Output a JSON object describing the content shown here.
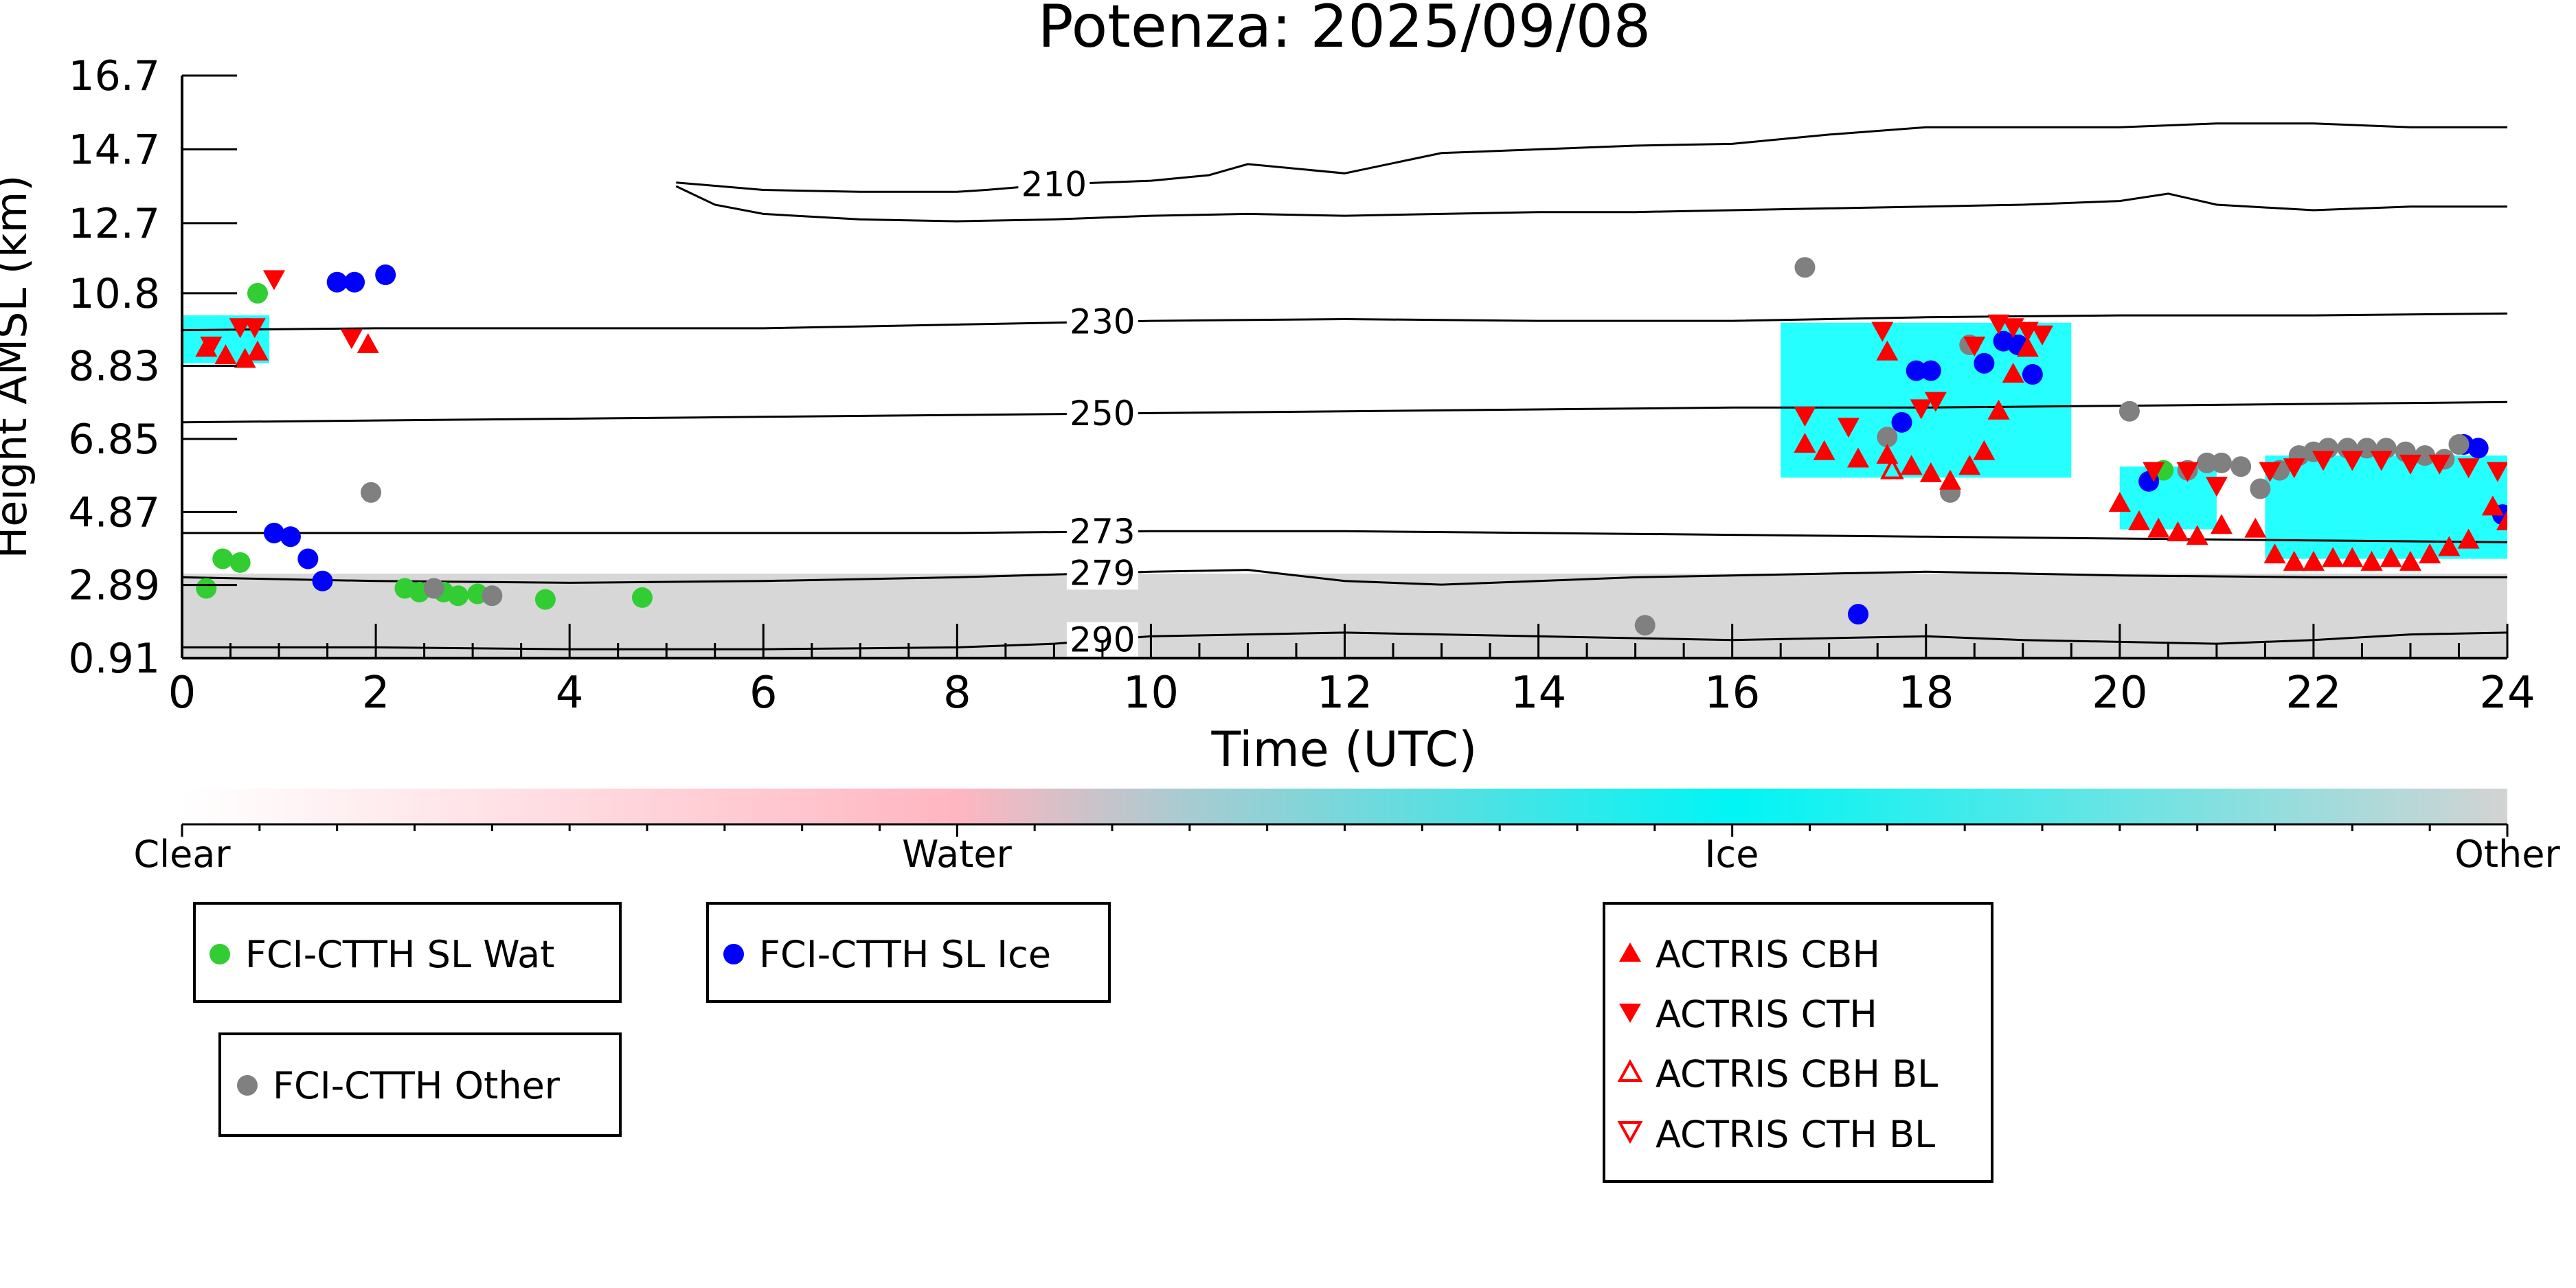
{
  "chart_data": {
    "type": "scatter",
    "title": "Potenza: 2025/09/08",
    "xlabel": "Time (UTC)",
    "ylabel": "Height AMSL (km)",
    "xlim": [
      0,
      24
    ],
    "ylim": [
      0.91,
      16.7
    ],
    "x_ticks": [
      "0",
      "2",
      "4",
      "6",
      "8",
      "10",
      "12",
      "14",
      "16",
      "18",
      "20",
      "22",
      "24"
    ],
    "y_ticks": [
      "0.91",
      "2.89",
      "4.87",
      "6.85",
      "8.83",
      "10.8",
      "12.7",
      "14.7",
      "16.7"
    ],
    "colorbar": {
      "labels": [
        "Clear",
        "Water",
        "Ice",
        "Other"
      ],
      "colors": [
        "#ffffff",
        "#ffb6c1",
        "#00ffff",
        "#d3d3d3"
      ]
    },
    "isotherms": [
      {
        "label": "210",
        "points": [
          [
            5.1,
            13.8
          ],
          [
            6,
            13.6
          ],
          [
            7,
            13.55
          ],
          [
            8,
            13.55
          ],
          [
            8.3,
            13.6
          ],
          [
            9,
            13.75
          ],
          [
            10,
            13.85
          ],
          [
            10.6,
            14.0
          ],
          [
            11,
            14.3
          ],
          [
            12,
            14.05
          ],
          [
            13,
            14.6
          ],
          [
            14,
            14.7
          ],
          [
            15,
            14.8
          ],
          [
            16,
            14.85
          ],
          [
            17,
            15.1
          ],
          [
            18,
            15.3
          ],
          [
            19,
            15.3
          ],
          [
            20,
            15.3
          ],
          [
            21,
            15.4
          ],
          [
            22,
            15.4
          ],
          [
            23,
            15.3
          ],
          [
            24,
            15.3
          ]
        ]
      },
      {
        "label": "",
        "points": [
          [
            5.1,
            13.7
          ],
          [
            5.5,
            13.2
          ],
          [
            6,
            12.95
          ],
          [
            7,
            12.8
          ],
          [
            8,
            12.75
          ],
          [
            9,
            12.8
          ],
          [
            10,
            12.9
          ],
          [
            11,
            12.95
          ],
          [
            12,
            12.9
          ],
          [
            13,
            12.95
          ],
          [
            14,
            13.0
          ],
          [
            15,
            13.0
          ],
          [
            16,
            13.05
          ],
          [
            17,
            13.1
          ],
          [
            18,
            13.15
          ],
          [
            19,
            13.2
          ],
          [
            20,
            13.3
          ],
          [
            20.5,
            13.5
          ],
          [
            21,
            13.2
          ],
          [
            22,
            13.05
          ],
          [
            23,
            13.15
          ],
          [
            24,
            13.15
          ]
        ]
      },
      {
        "label": "230",
        "points": [
          [
            0,
            9.8
          ],
          [
            2,
            9.85
          ],
          [
            4,
            9.85
          ],
          [
            6,
            9.85
          ],
          [
            8,
            9.95
          ],
          [
            10,
            10.05
          ],
          [
            12,
            10.1
          ],
          [
            14,
            10.05
          ],
          [
            16,
            10.05
          ],
          [
            18,
            10.15
          ],
          [
            20,
            10.2
          ],
          [
            22,
            10.2
          ],
          [
            24,
            10.25
          ]
        ]
      },
      {
        "label": "250",
        "points": [
          [
            0,
            7.3
          ],
          [
            2,
            7.35
          ],
          [
            4,
            7.4
          ],
          [
            6,
            7.45
          ],
          [
            8,
            7.5
          ],
          [
            10,
            7.55
          ],
          [
            12,
            7.6
          ],
          [
            14,
            7.65
          ],
          [
            16,
            7.7
          ],
          [
            18,
            7.7
          ],
          [
            20,
            7.75
          ],
          [
            22,
            7.8
          ],
          [
            24,
            7.85
          ]
        ]
      },
      {
        "label": "273",
        "points": [
          [
            0,
            4.3
          ],
          [
            2,
            4.3
          ],
          [
            4,
            4.3
          ],
          [
            6,
            4.3
          ],
          [
            8,
            4.3
          ],
          [
            10,
            4.35
          ],
          [
            12,
            4.35
          ],
          [
            14,
            4.3
          ],
          [
            16,
            4.25
          ],
          [
            18,
            4.2
          ],
          [
            20,
            4.15
          ],
          [
            22,
            4.1
          ],
          [
            24,
            4.05
          ]
        ]
      },
      {
        "label": "279",
        "points": [
          [
            0,
            3.1
          ],
          [
            2,
            3.0
          ],
          [
            4,
            2.95
          ],
          [
            6,
            3.0
          ],
          [
            8,
            3.1
          ],
          [
            10,
            3.25
          ],
          [
            11,
            3.3
          ],
          [
            12,
            3.0
          ],
          [
            13,
            2.9
          ],
          [
            14,
            3.0
          ],
          [
            15,
            3.1
          ],
          [
            16,
            3.15
          ],
          [
            17,
            3.2
          ],
          [
            18,
            3.25
          ],
          [
            19,
            3.2
          ],
          [
            20,
            3.15
          ],
          [
            22,
            3.1
          ],
          [
            24,
            3.1
          ]
        ]
      },
      {
        "label": "290",
        "points": [
          [
            0,
            1.2
          ],
          [
            2,
            1.2
          ],
          [
            4,
            1.15
          ],
          [
            6,
            1.15
          ],
          [
            8,
            1.2
          ],
          [
            9,
            1.3
          ],
          [
            10,
            1.5
          ],
          [
            11,
            1.55
          ],
          [
            12,
            1.6
          ],
          [
            13,
            1.55
          ],
          [
            14,
            1.5
          ],
          [
            15,
            1.45
          ],
          [
            16,
            1.4
          ],
          [
            17,
            1.45
          ],
          [
            18,
            1.5
          ],
          [
            19,
            1.4
          ],
          [
            20,
            1.35
          ],
          [
            21,
            1.3
          ],
          [
            22,
            1.4
          ],
          [
            23,
            1.55
          ],
          [
            24,
            1.6
          ]
        ]
      }
    ],
    "series": [
      {
        "name": "FCI-CTTH SL Wat",
        "color": "#32cd32",
        "marker": "circle",
        "points": [
          [
            0.25,
            2.8
          ],
          [
            0.42,
            3.6
          ],
          [
            0.6,
            3.5
          ],
          [
            0.78,
            10.8
          ],
          [
            2.3,
            2.8
          ],
          [
            2.45,
            2.7
          ],
          [
            2.7,
            2.7
          ],
          [
            2.85,
            2.6
          ],
          [
            3.05,
            2.65
          ],
          [
            3.75,
            2.5
          ],
          [
            4.75,
            2.55
          ],
          [
            20.45,
            6.0
          ]
        ]
      },
      {
        "name": "FCI-CTTH SL Ice",
        "color": "#0000ff",
        "marker": "circle",
        "points": [
          [
            0.95,
            4.3
          ],
          [
            1.12,
            4.2
          ],
          [
            1.3,
            3.6
          ],
          [
            1.45,
            3.0
          ],
          [
            1.6,
            11.1
          ],
          [
            1.78,
            11.1
          ],
          [
            2.1,
            11.3
          ],
          [
            17.3,
            2.1
          ],
          [
            17.75,
            7.3
          ],
          [
            17.9,
            8.7
          ],
          [
            18.05,
            8.7
          ],
          [
            18.6,
            8.9
          ],
          [
            18.8,
            9.5
          ],
          [
            18.95,
            9.4
          ],
          [
            19.1,
            8.6
          ],
          [
            20.3,
            5.7
          ],
          [
            23.55,
            6.7
          ],
          [
            23.7,
            6.6
          ],
          [
            23.95,
            4.8
          ]
        ]
      },
      {
        "name": "FCI-CTTH Other",
        "color": "#808080",
        "marker": "circle",
        "points": [
          [
            1.95,
            5.4
          ],
          [
            2.6,
            2.8
          ],
          [
            3.2,
            2.6
          ],
          [
            15.1,
            1.8
          ],
          [
            16.75,
            11.5
          ],
          [
            17.6,
            6.9
          ],
          [
            18.25,
            5.4
          ],
          [
            18.45,
            9.4
          ],
          [
            20.1,
            7.6
          ],
          [
            20.7,
            6.0
          ],
          [
            20.9,
            6.2
          ],
          [
            21.05,
            6.2
          ],
          [
            21.25,
            6.1
          ],
          [
            21.45,
            5.5
          ],
          [
            21.65,
            6.0
          ],
          [
            21.85,
            6.4
          ],
          [
            22.0,
            6.5
          ],
          [
            22.15,
            6.6
          ],
          [
            22.35,
            6.6
          ],
          [
            22.55,
            6.6
          ],
          [
            22.75,
            6.6
          ],
          [
            22.95,
            6.5
          ],
          [
            23.15,
            6.4
          ],
          [
            23.35,
            6.3
          ],
          [
            23.5,
            6.7
          ]
        ]
      },
      {
        "name": "ACTRIS CBH",
        "color": "#ff0000",
        "marker": "triangle-up",
        "points": [
          [
            0.25,
            9.3
          ],
          [
            0.45,
            9.1
          ],
          [
            0.65,
            9.0
          ],
          [
            0.78,
            9.2
          ],
          [
            1.92,
            9.4
          ],
          [
            16.75,
            6.7
          ],
          [
            16.95,
            6.5
          ],
          [
            17.3,
            6.3
          ],
          [
            17.6,
            6.4
          ],
          [
            17.85,
            6.1
          ],
          [
            18.05,
            5.9
          ],
          [
            18.25,
            5.7
          ],
          [
            18.45,
            6.1
          ],
          [
            18.6,
            6.5
          ],
          [
            18.75,
            7.6
          ],
          [
            18.9,
            8.6
          ],
          [
            19.05,
            9.3
          ],
          [
            17.6,
            9.2
          ],
          [
            20.0,
            5.1
          ],
          [
            20.2,
            4.6
          ],
          [
            20.4,
            4.4
          ],
          [
            20.6,
            4.3
          ],
          [
            20.8,
            4.2
          ],
          [
            21.05,
            4.5
          ],
          [
            21.4,
            4.4
          ],
          [
            21.6,
            3.7
          ],
          [
            21.8,
            3.5
          ],
          [
            22.0,
            3.5
          ],
          [
            22.2,
            3.6
          ],
          [
            22.4,
            3.6
          ],
          [
            22.6,
            3.5
          ],
          [
            22.8,
            3.6
          ],
          [
            23.0,
            3.5
          ],
          [
            23.2,
            3.7
          ],
          [
            23.4,
            3.9
          ],
          [
            23.6,
            4.1
          ],
          [
            23.85,
            5.0
          ],
          [
            24.0,
            4.6
          ]
        ]
      },
      {
        "name": "ACTRIS CTH",
        "color": "#ff0000",
        "marker": "triangle-down",
        "points": [
          [
            0.3,
            9.4
          ],
          [
            0.6,
            9.9
          ],
          [
            0.75,
            9.9
          ],
          [
            0.95,
            11.2
          ],
          [
            1.75,
            9.6
          ],
          [
            16.75,
            7.5
          ],
          [
            17.2,
            7.2
          ],
          [
            17.55,
            9.8
          ],
          [
            17.95,
            7.7
          ],
          [
            18.1,
            7.9
          ],
          [
            18.5,
            9.4
          ],
          [
            18.75,
            10.0
          ],
          [
            18.9,
            9.9
          ],
          [
            19.05,
            9.8
          ],
          [
            19.2,
            9.7
          ],
          [
            20.35,
            6.0
          ],
          [
            20.7,
            6.0
          ],
          [
            21.0,
            5.6
          ],
          [
            21.55,
            6.0
          ],
          [
            21.8,
            6.1
          ],
          [
            22.1,
            6.3
          ],
          [
            22.4,
            6.3
          ],
          [
            22.7,
            6.3
          ],
          [
            23.0,
            6.2
          ],
          [
            23.3,
            6.2
          ],
          [
            23.6,
            6.1
          ],
          [
            23.9,
            6.0
          ]
        ]
      },
      {
        "name": "ACTRIS CBH BL",
        "color": "#ff0000",
        "marker": "triangle-up-open",
        "points": [
          [
            17.65,
            6.0
          ]
        ]
      },
      {
        "name": "ACTRIS CTH BL",
        "color": "#ff0000",
        "marker": "triangle-down-open",
        "points": []
      }
    ],
    "cloud_regions": [
      {
        "class": "Other",
        "color": "#d3d3d3",
        "xlim": [
          0,
          24
        ],
        "ylim": [
          0.91,
          3.2
        ]
      },
      {
        "class": "Ice",
        "color": "#00ffff",
        "xlim": [
          0.0,
          0.9
        ],
        "ylim": [
          8.9,
          10.2
        ]
      },
      {
        "class": "Ice",
        "color": "#00ffff",
        "xlim": [
          16.5,
          19.5
        ],
        "ylim": [
          5.8,
          10.0
        ]
      },
      {
        "class": "Ice",
        "color": "#00ffff",
        "xlim": [
          20.0,
          21.0
        ],
        "ylim": [
          4.4,
          6.1
        ]
      },
      {
        "class": "Ice",
        "color": "#00ffff",
        "xlim": [
          21.5,
          24.0
        ],
        "ylim": [
          3.6,
          6.4
        ]
      }
    ]
  }
}
